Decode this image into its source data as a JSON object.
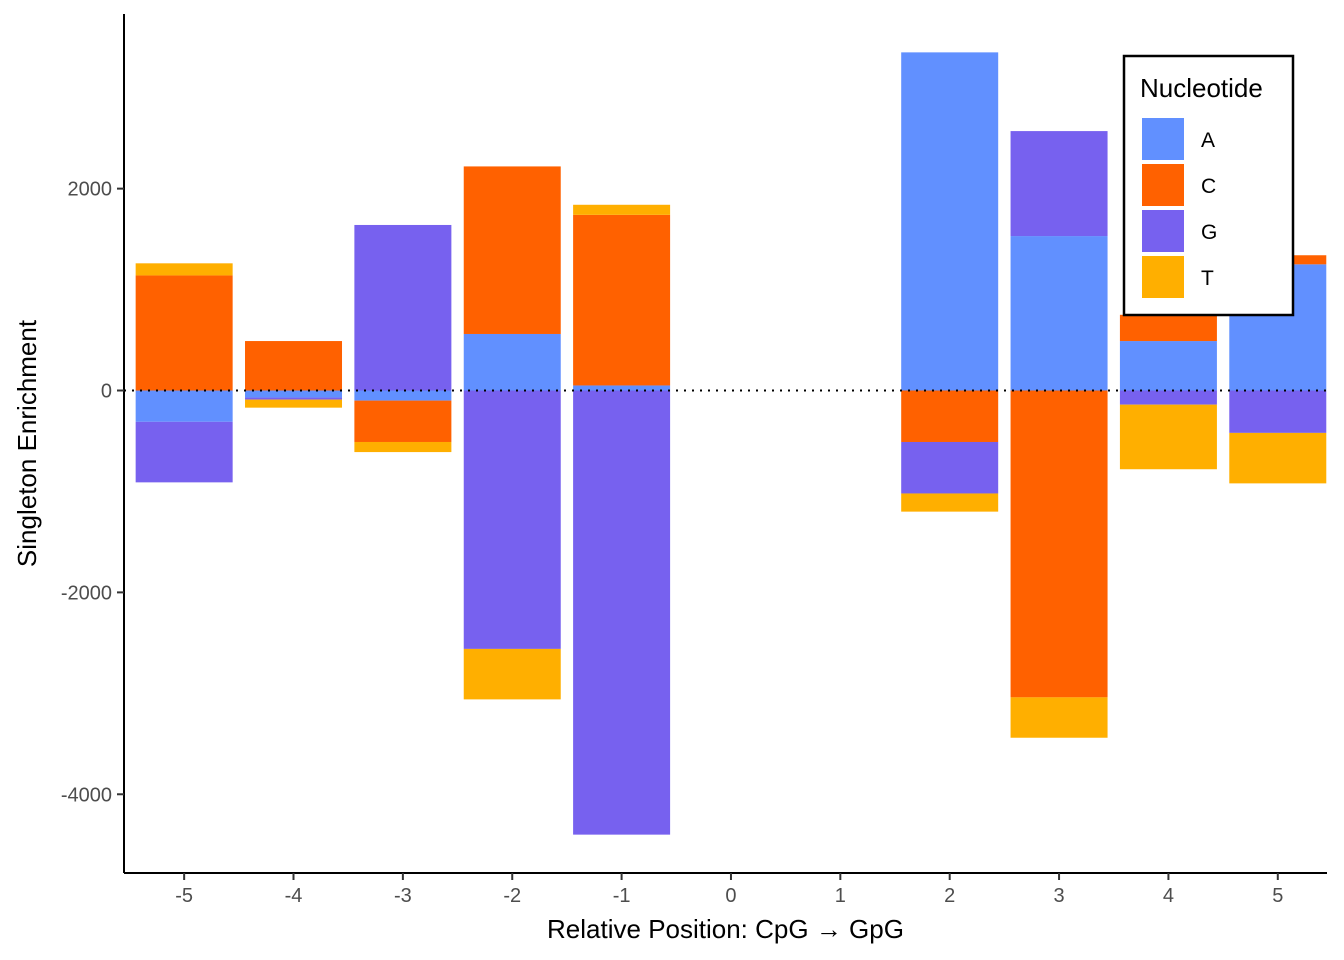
{
  "chart_data": {
    "type": "bar",
    "stacked": true,
    "xlabel": "Relative Position: CpG → GpG",
    "ylabel": "Singleton Enrichment",
    "categories": [
      "-5",
      "-4",
      "-3",
      "-2",
      "-1",
      "0",
      "1",
      "2",
      "3",
      "4",
      "5"
    ],
    "x": [
      -5,
      -4,
      -3,
      -2,
      -1,
      0,
      1,
      2,
      3,
      4,
      5
    ],
    "ylim": [
      -4780,
      3730
    ],
    "yticks": [
      -4000,
      -2000,
      0,
      2000
    ],
    "ytick_labels": [
      "-4000",
      "-2000",
      "0",
      "2000"
    ],
    "reference_line": {
      "y": 0,
      "style": "dotted"
    },
    "grid": false,
    "legend": {
      "title": "Nucleotide",
      "placement": "top-right",
      "entries": [
        "A",
        "C",
        "G",
        "T"
      ]
    },
    "series": [
      {
        "name": "A",
        "color": "#6190FF",
        "values": [
          -310,
          -70,
          -100,
          560,
          50,
          0,
          0,
          3350,
          1530,
          490,
          1250
        ]
      },
      {
        "name": "C",
        "color": "#FF6100",
        "values": [
          1140,
          490,
          -410,
          1660,
          1690,
          0,
          0,
          -510,
          -3040,
          260,
          90
        ]
      },
      {
        "name": "G",
        "color": "#7761EF",
        "values": [
          -600,
          -20,
          1640,
          -2560,
          -4400,
          0,
          0,
          -510,
          1040,
          -140,
          -420
        ]
      },
      {
        "name": "T",
        "color": "#FFAF00",
        "values": [
          120,
          -80,
          -100,
          -500,
          100,
          0,
          0,
          -180,
          -400,
          -640,
          -500
        ]
      }
    ]
  }
}
